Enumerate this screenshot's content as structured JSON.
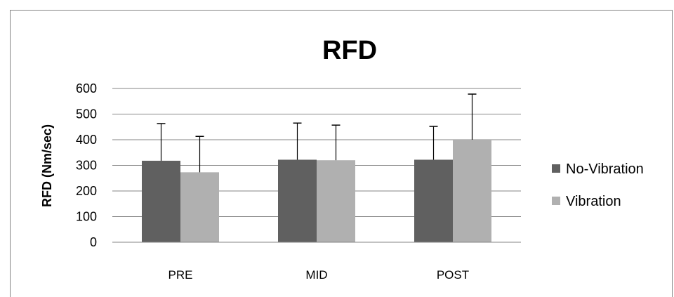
{
  "chart_data": {
    "type": "bar",
    "title": "RFD",
    "xlabel": "",
    "ylabel": "RFD (Nm/sec)",
    "ylim": [
      0,
      600
    ],
    "yticks": [
      "0",
      "100",
      "200",
      "300",
      "400",
      "500",
      "600"
    ],
    "categories": [
      "PRE",
      "MID",
      "POST"
    ],
    "grid": true,
    "legend_position": "right",
    "series": [
      {
        "name": "No-Vibration",
        "color": "#606060",
        "values": [
          318,
          322,
          322
        ],
        "error": [
          145,
          143,
          130
        ]
      },
      {
        "name": "Vibration",
        "color": "#b0b0b0",
        "values": [
          273,
          320,
          400
        ],
        "error": [
          140,
          137,
          178
        ]
      }
    ]
  }
}
